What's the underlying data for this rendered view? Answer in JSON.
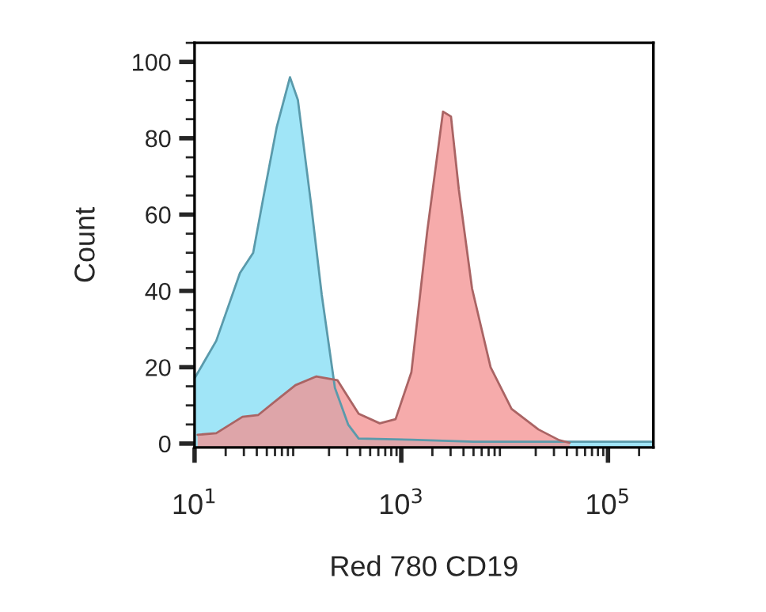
{
  "chart_data": {
    "type": "area",
    "xlabel": "Red 780 CD19",
    "ylabel": "Count",
    "log": "x",
    "xlim": [
      10,
      275000
    ],
    "xticks": [
      {
        "value": 10,
        "label": "10$^{1}$"
      },
      {
        "value": 1000,
        "label": "10$^{3}$"
      },
      {
        "value": 100000,
        "label": "10$^{5}$"
      }
    ],
    "ylim": [
      -1,
      105
    ],
    "yticks": [
      0,
      20,
      40,
      60,
      80,
      100
    ],
    "grid": false,
    "legend": false,
    "series": [
      {
        "color": "#80dcf4",
        "x": [
          10.1,
          16.2,
          27.5,
          36.9,
          46.7,
          62.5,
          83.8,
          100,
          134.5,
          170,
          228,
          306,
          387,
          1253,
          5000,
          50000,
          275000
        ],
        "values": [
          17.3,
          26.9,
          44.7,
          50,
          65,
          83,
          96,
          90,
          62.4,
          39,
          14.6,
          5,
          1.3,
          1,
          0.5,
          0.5,
          0.5
        ]
      },
      {
        "color": "#f38f8f",
        "x": [
          10.7,
          16.2,
          29.1,
          41.4,
          66.4,
          94.6,
          151,
          241,
          387,
          619,
          881,
          1253,
          1782,
          2535,
          3027,
          3606,
          4842,
          7311,
          11670,
          21240,
          33650,
          42560
        ],
        "values": [
          2.3,
          2.7,
          7,
          7.5,
          12,
          15.3,
          17.6,
          16.6,
          7.8,
          5.3,
          6.4,
          18.7,
          55.6,
          87,
          85.7,
          66.5,
          40.6,
          20,
          9.1,
          3.7,
          0.9,
          0.2
        ]
      }
    ]
  }
}
